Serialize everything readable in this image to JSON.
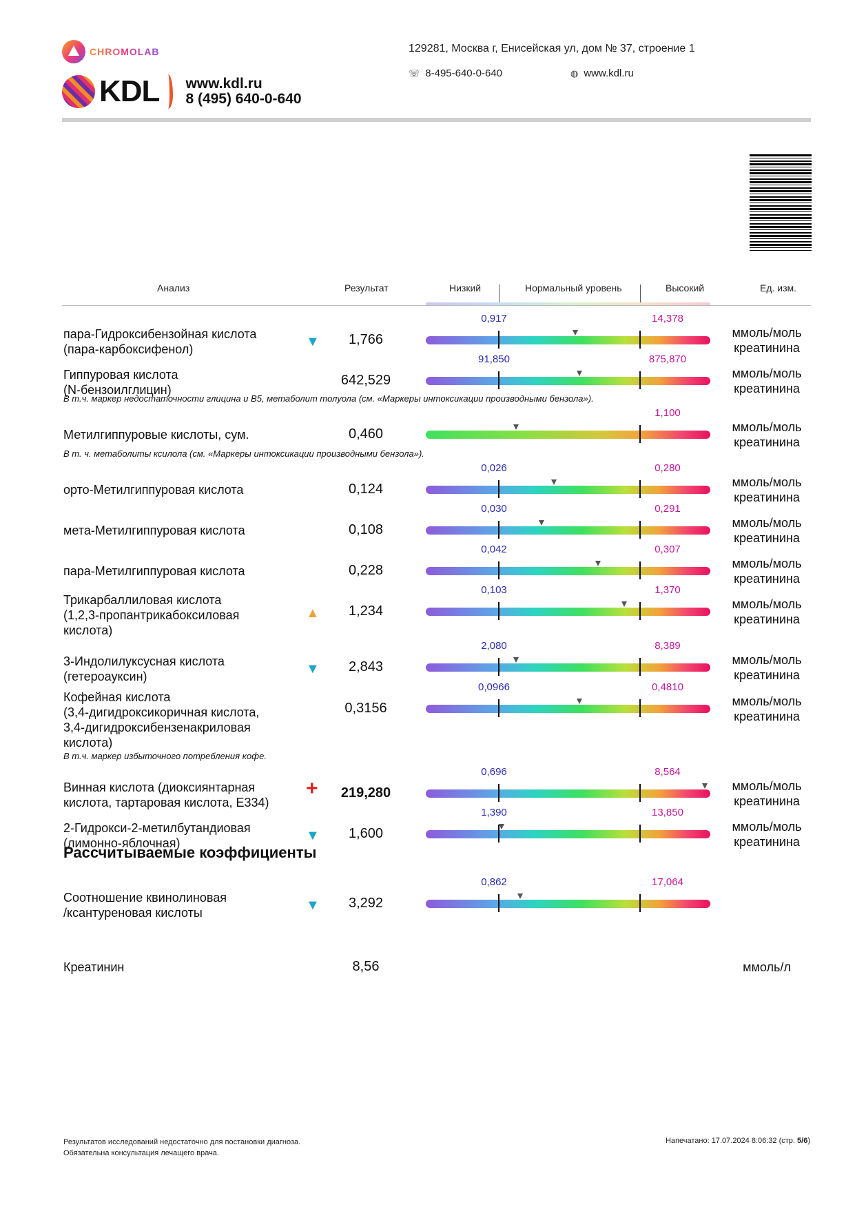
{
  "header": {
    "chromolab": "CHROMOLAB",
    "kdl": "KDL",
    "site": "www.kdl.ru",
    "phone_main": "8 (495) 640-0-640",
    "address": "129281, Москва г, Енисейская ул, дом № 37, строение 1",
    "phone": "8-495-640-0-640",
    "web": "www.kdl.ru"
  },
  "table_header": {
    "analysis": "Анализ",
    "result": "Результат",
    "low": "Низкий",
    "normal": "Нормальный уровень",
    "high": "Высокий",
    "unit": "Ед. изм."
  },
  "rows": [
    {
      "name": "пара-Гидроксибензойная кислота\n(пара-карбоксифенол)",
      "flag": "▼",
      "value": "1,766",
      "low": "0,917",
      "high": "14,378",
      "unit": "ммоль/моль\nкреатинина",
      "marker": 0.54
    },
    {
      "name": "Гиппуровая кислота\n(N-бензоилглицин)",
      "flag": "",
      "value": "642,529",
      "low": "91,850",
      "high": "875,870",
      "unit": "ммоль/моль\nкреатинина",
      "marker": 0.57
    },
    {
      "name": "Метилгиппуровые кислоты, сум.",
      "flag": "",
      "value": "0,460",
      "low": "",
      "high": "1,100",
      "unit": "ммоль/моль\nкреатинина",
      "marker": 0.42
    },
    {
      "name": "орто-Метилгиппуровая кислота",
      "flag": "",
      "value": "0,124",
      "low": "0,026",
      "high": "0,280",
      "unit": "ммоль/моль\nкреатинина",
      "marker": 0.39
    },
    {
      "name": "мета-Метилгиппуровая кислота",
      "flag": "",
      "value": "0,108",
      "low": "0,030",
      "high": "0,291",
      "unit": "ммоль/моль\nкреатинина",
      "marker": 0.3
    },
    {
      "name": "пара-Метилгиппуровая кислота",
      "flag": "",
      "value": "0,228",
      "low": "0,042",
      "high": "0,307",
      "unit": "ммоль/моль\nкреатинина",
      "marker": 0.7
    },
    {
      "name": "Трикарбаллиловая кислота\n(1,2,3-пропантрикабоксиловая\nкислота)",
      "flag": "▲",
      "value": "1,234",
      "low": "0,103",
      "high": "1,370",
      "unit": "ммоль/моль\nкреатинина",
      "marker": 0.89
    },
    {
      "name": "3-Индолилуксусная кислота\n(гетероауксин)",
      "flag": "▼",
      "value": "2,843",
      "low": "2,080",
      "high": "8,389",
      "unit": "ммоль/моль\nкреатинина",
      "marker": 0.12
    },
    {
      "name": "Кофейная кислота\n(3,4-дигидроксикоричная кислота,\n3,4-дигидроксибензенакриловая\nкислота)",
      "flag": "",
      "value": "0,3156",
      "low": "0,0966",
      "high": "0,4810",
      "unit": "ммоль/моль\nкреатинина",
      "marker": 0.57
    },
    {
      "name": "Винная кислота (диоксиянтарная\nкислота, тартаровая кислота, Е334)",
      "flag": "+",
      "value": "219,280",
      "low": "0,696",
      "high": "8,564",
      "unit": "ммоль/моль\nкреатинина",
      "marker": 1.47
    },
    {
      "name": "2-Гидрокси-2-метилбутандиовая\n(лимонно-яблочная)",
      "flag": "▼",
      "value": "1,600",
      "low": "1,390",
      "high": "13,850",
      "unit": "ммоль/моль\nкреатинина",
      "marker": 0.02
    },
    {
      "name": "Соотношение квинолиновая\n/ксантуреновая кислоты",
      "flag": "▼",
      "value": "3,292",
      "low": "0,862",
      "high": "17,064",
      "unit": "",
      "marker": 0.15
    }
  ],
  "notes": {
    "hippuric": "В т.ч. маркер недостаточности глицина и В5, метаболит толуола (см. «Маркеры интоксикации производными бензола»).",
    "methylhippuric": "В т. ч. метаболиты ксилола (см. «Маркеры интоксикации производными бензола»).",
    "caffeic": "В т.ч. маркер избыточного потребления кофе."
  },
  "section_title": "Рассчитываемые коэффициенты",
  "creatinine": {
    "name": "Креатинин",
    "value": "8,56",
    "unit": "ммоль/л"
  },
  "footer": {
    "line1": "Результатов исследований недостаточно для постановки диагноза.",
    "line2": "Обязательна консультация лечащего врача.",
    "printed": "Напечатано: 17.07.2024 8:06:32 (стр.  ",
    "page": "5/6",
    "printed_end": ")"
  }
}
